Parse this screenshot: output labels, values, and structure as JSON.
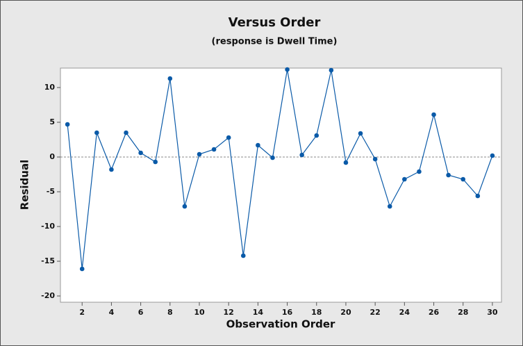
{
  "chart_data": {
    "type": "line",
    "title": "Versus Order",
    "subtitle": "(response is Dwell Time)",
    "x_label": "Observation Order",
    "y_label": "Residual",
    "x": [
      1,
      2,
      3,
      4,
      5,
      6,
      7,
      8,
      9,
      10,
      11,
      12,
      13,
      14,
      15,
      16,
      17,
      18,
      19,
      20,
      21,
      22,
      23,
      24,
      25,
      26,
      27,
      28,
      29,
      30
    ],
    "series": [
      {
        "color": "#0a5aa8",
        "values": [
          4.7,
          -16.1,
          3.5,
          -1.8,
          3.5,
          0.6,
          -0.7,
          11.3,
          -7.1,
          0.4,
          1.1,
          2.8,
          -14.2,
          1.7,
          -0.1,
          12.6,
          0.3,
          3.1,
          12.5,
          -0.8,
          3.4,
          -0.3,
          -7.1,
          -3.2,
          -2.1,
          6.1,
          -2.6,
          -3.2,
          -5.6,
          0.2
        ]
      }
    ],
    "xlim": [
      0.52,
      30.62
    ],
    "xticks": [
      2,
      4,
      6,
      8,
      10,
      12,
      14,
      16,
      18,
      20,
      22,
      24,
      26,
      28,
      30
    ],
    "ylim": [
      -20.9,
      12.8
    ],
    "yticks": [
      -20,
      -15,
      -10,
      -5,
      0,
      5,
      10
    ],
    "reference_line": 0,
    "grid": false
  }
}
